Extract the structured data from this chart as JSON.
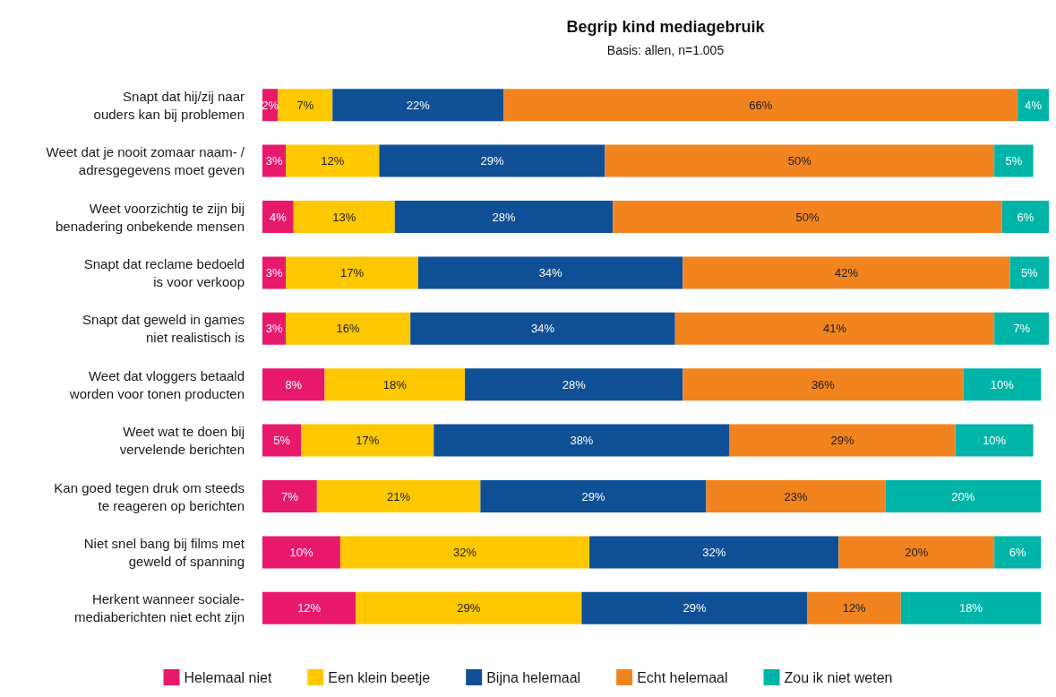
{
  "chart_data": {
    "type": "bar",
    "orientation": "horizontal",
    "stacked": true,
    "title": "Begrip kind mediagebruik",
    "subtitle": "Basis: allen, n=1.005",
    "legend": "bottom",
    "categories": [
      "Snapt dat hij/zij naar\nouders kan bij problemen",
      "Weet dat je nooit zomaar naam- /\nadresgegevens moet geven",
      "Weet voorzichtig te zijn bij\nbenadering onbekende mensen",
      "Snapt dat reclame bedoeld\nis voor verkoop",
      "Snapt dat geweld in games\nniet realistisch is",
      "Weet dat vloggers betaald\nworden voor tonen producten",
      "Weet wat te doen bij\nvervelende berichten",
      "Kan goed tegen druk om steeds\nte reageren op berichten",
      "Niet snel bang bij films met\ngeweld of spanning",
      "Herkent wanneer sociale-\nmediaberichten niet echt zijn"
    ],
    "series": [
      {
        "name": "Helemaal niet",
        "color": "#e8196b",
        "values": [
          2,
          3,
          4,
          3,
          3,
          8,
          5,
          7,
          10,
          12
        ],
        "value_labels": [
          "2%",
          "3%",
          "4%",
          "3%",
          "3%",
          "8%",
          "5%",
          "7%",
          "10%",
          "12%"
        ]
      },
      {
        "name": "Een klein beetje",
        "color": "#fec800",
        "values": [
          7,
          12,
          13,
          17,
          16,
          18,
          17,
          21,
          32,
          29
        ],
        "value_labels": [
          "7%",
          "12%",
          "13%",
          "17%",
          "16%",
          "18%",
          "17%",
          "21%",
          "32%",
          "29%"
        ]
      },
      {
        "name": "Bijna helemaal",
        "color": "#0f4f96",
        "values": [
          22,
          29,
          28,
          34,
          34,
          28,
          38,
          29,
          32,
          29
        ],
        "value_labels": [
          "22%",
          "29%",
          "28%",
          "34%",
          "34%",
          "28%",
          "38%",
          "29%",
          "32%",
          "29%"
        ]
      },
      {
        "name": "Echt helemaal",
        "color": "#f28420",
        "values": [
          66,
          50,
          50,
          42,
          41,
          36,
          29,
          23,
          20,
          12
        ],
        "value_labels": [
          "66%",
          "50%",
          "50%",
          "42%",
          "41%",
          "36%",
          "29%",
          "23%",
          "20%",
          "12%"
        ]
      },
      {
        "name": "Zou ik niet weten",
        "color": "#00b5a8",
        "values": [
          4,
          5,
          6,
          5,
          7,
          10,
          10,
          20,
          6,
          18
        ],
        "value_labels": [
          "4%",
          "5%",
          "6%",
          "5%",
          "7%",
          "10%",
          "10%",
          "20%",
          "6%",
          "18%"
        ]
      }
    ]
  }
}
